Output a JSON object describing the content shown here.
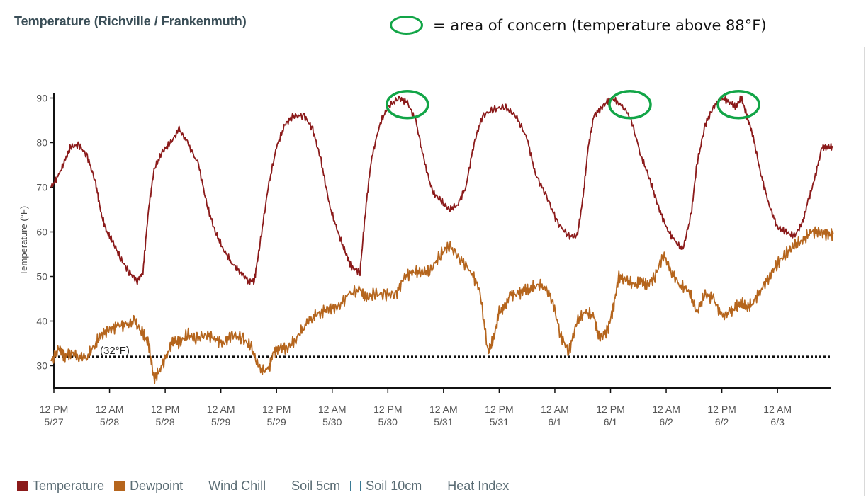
{
  "header": {
    "title": "Temperature (Richville / Frankenmuth)",
    "concern_text": "= area of concern (temperature above 88°F)",
    "concern_color": "#12a547"
  },
  "chart_data": {
    "type": "line",
    "ylabel": "Temperature (°F)",
    "ylim": [
      27,
      92
    ],
    "yticks": [
      30,
      40,
      50,
      60,
      70,
      80,
      90
    ],
    "xlim": [
      0,
      14.05
    ],
    "x_unit": "intervals of 12 hours starting 12 PM 5/27",
    "xticks": [
      {
        "x": 0,
        "line1": "12 PM",
        "line2": "5/27"
      },
      {
        "x": 1,
        "line1": "12 AM",
        "line2": "5/28"
      },
      {
        "x": 2,
        "line1": "12 PM",
        "line2": "5/28"
      },
      {
        "x": 3,
        "line1": "12 AM",
        "line2": "5/29"
      },
      {
        "x": 4,
        "line1": "12 PM",
        "line2": "5/29"
      },
      {
        "x": 5,
        "line1": "12 AM",
        "line2": "5/30"
      },
      {
        "x": 6,
        "line1": "12 PM",
        "line2": "5/30"
      },
      {
        "x": 7,
        "line1": "12 AM",
        "line2": "5/31"
      },
      {
        "x": 8,
        "line1": "12 PM",
        "line2": "5/31"
      },
      {
        "x": 9,
        "line1": "12 AM",
        "line2": "6/1"
      },
      {
        "x": 10,
        "line1": "12 PM",
        "line2": "6/1"
      },
      {
        "x": 11,
        "line1": "12 AM",
        "line2": "6/2"
      },
      {
        "x": 12,
        "line1": "12 PM",
        "line2": "6/2"
      },
      {
        "x": 13,
        "line1": "12 AM",
        "line2": "6/3"
      }
    ],
    "reference_line": {
      "y": 32,
      "label": "(32°F)"
    },
    "series": [
      {
        "name": "Temperature",
        "color": "#8b1a1a",
        "x": [
          -0.05,
          0.1,
          0.2,
          0.3,
          0.45,
          0.6,
          0.75,
          0.85,
          0.95,
          1.05,
          1.2,
          1.35,
          1.5,
          1.6,
          1.7,
          1.8,
          1.95,
          2.1,
          2.25,
          2.4,
          2.6,
          2.75,
          2.9,
          3.05,
          3.2,
          3.35,
          3.5,
          3.6,
          3.7,
          3.85,
          4.0,
          4.15,
          4.3,
          4.5,
          4.65,
          4.8,
          4.95,
          5.1,
          5.25,
          5.35,
          5.5,
          5.6,
          5.7,
          5.85,
          6.0,
          6.2,
          6.35,
          6.5,
          6.65,
          6.8,
          6.95,
          7.1,
          7.25,
          7.4,
          7.55,
          7.7,
          7.9,
          8.1,
          8.3,
          8.5,
          8.65,
          8.85,
          9.05,
          9.25,
          9.4,
          9.5,
          9.6,
          9.7,
          9.85,
          10.0,
          10.15,
          10.35,
          10.55,
          10.7,
          10.85,
          11.0,
          11.15,
          11.3,
          11.45,
          11.55,
          11.7,
          11.85,
          12.0,
          12.15,
          12.25,
          12.35,
          12.45,
          12.55,
          12.7,
          12.85,
          13.0,
          13.15,
          13.3,
          13.45,
          13.55,
          13.65,
          13.8,
          13.9,
          14.0
        ],
        "y": [
          70,
          73,
          76,
          79,
          79.5,
          77,
          71,
          64,
          60,
          58,
          54,
          51,
          49,
          51,
          65,
          74,
          78,
          80,
          83,
          80,
          75,
          66,
          60,
          56,
          53,
          51,
          49,
          49,
          57,
          70,
          79,
          84,
          86,
          86,
          83,
          76,
          66,
          60,
          55,
          52,
          51,
          65,
          76,
          84,
          88,
          90,
          89,
          85,
          76,
          69,
          67,
          65,
          66,
          70,
          80,
          86,
          87.5,
          88,
          86,
          81,
          73,
          68,
          62,
          59,
          59,
          67,
          79,
          86,
          88,
          90,
          89,
          86,
          77,
          72,
          66,
          61,
          58,
          56,
          64,
          75,
          84,
          88,
          90,
          89,
          88,
          90,
          86,
          82,
          73,
          66,
          61,
          60,
          59,
          62,
          67,
          71,
          79,
          79,
          79
        ]
      },
      {
        "name": "Dewpoint",
        "color": "#b5651d",
        "x": [
          -0.05,
          0.1,
          0.2,
          0.3,
          0.45,
          0.6,
          0.75,
          0.85,
          1.0,
          1.15,
          1.3,
          1.45,
          1.6,
          1.7,
          1.8,
          1.9,
          2.05,
          2.15,
          2.25,
          2.4,
          2.55,
          2.75,
          2.9,
          3.05,
          3.2,
          3.4,
          3.55,
          3.7,
          3.85,
          3.95,
          4.05,
          4.2,
          4.35,
          4.5,
          4.65,
          4.8,
          4.95,
          5.1,
          5.3,
          5.5,
          5.6,
          5.75,
          5.95,
          6.15,
          6.3,
          6.45,
          6.6,
          6.75,
          6.95,
          7.1,
          7.3,
          7.5,
          7.65,
          7.8,
          7.9,
          8.0,
          8.1,
          8.2,
          8.35,
          8.45,
          8.55,
          8.65,
          8.8,
          8.95,
          9.1,
          9.25,
          9.4,
          9.55,
          9.7,
          9.8,
          9.95,
          10.05,
          10.15,
          10.3,
          10.45,
          10.55,
          10.65,
          10.8,
          10.95,
          11.1,
          11.25,
          11.4,
          11.55,
          11.7,
          11.85,
          12.0,
          12.15,
          12.25,
          12.35,
          12.45,
          12.55,
          12.7,
          12.85,
          13.0,
          13.15,
          13.3,
          13.45,
          13.6,
          13.75,
          13.9,
          14.0
        ],
        "y": [
          31,
          34,
          32,
          33,
          32,
          32,
          35,
          37,
          38,
          39,
          39,
          40,
          37,
          35,
          27,
          29,
          33,
          36,
          35,
          37,
          36,
          37,
          36,
          35,
          37,
          36,
          34,
          29,
          29,
          33,
          34,
          34,
          36,
          39,
          41,
          42,
          43,
          43,
          46,
          47,
          45,
          46,
          46,
          46,
          50,
          51,
          51,
          51,
          55,
          57,
          54,
          51,
          47,
          33,
          36,
          42,
          43,
          46,
          46,
          47,
          47,
          48,
          48,
          45,
          37,
          33,
          40,
          42,
          41,
          36,
          38,
          43,
          50,
          49,
          48,
          49,
          48,
          50,
          55,
          51,
          48,
          47,
          42,
          46,
          45,
          41,
          42,
          43,
          44,
          43,
          44,
          47,
          50,
          53,
          55,
          57,
          58,
          60,
          60,
          59.5,
          59.5
        ]
      }
    ],
    "legend": [
      {
        "name": "Temperature",
        "color": "#8b1a1a",
        "filled": true
      },
      {
        "name": "Dewpoint",
        "color": "#b5651d",
        "filled": true
      },
      {
        "name": "Wind Chill",
        "color": "#f0d24a",
        "filled": false
      },
      {
        "name": "Soil 5cm",
        "color": "#3aa67a",
        "filled": false
      },
      {
        "name": "Soil 10cm",
        "color": "#3a7a95",
        "filled": false
      },
      {
        "name": "Heat Index",
        "color": "#4a2a5a",
        "filled": false
      }
    ],
    "concern_areas": [
      {
        "x": 6.35,
        "y": 89
      },
      {
        "x": 10.35,
        "y": 89
      },
      {
        "x": 12.3,
        "y": 89
      }
    ],
    "legend_position": "bottom",
    "grid": false
  }
}
